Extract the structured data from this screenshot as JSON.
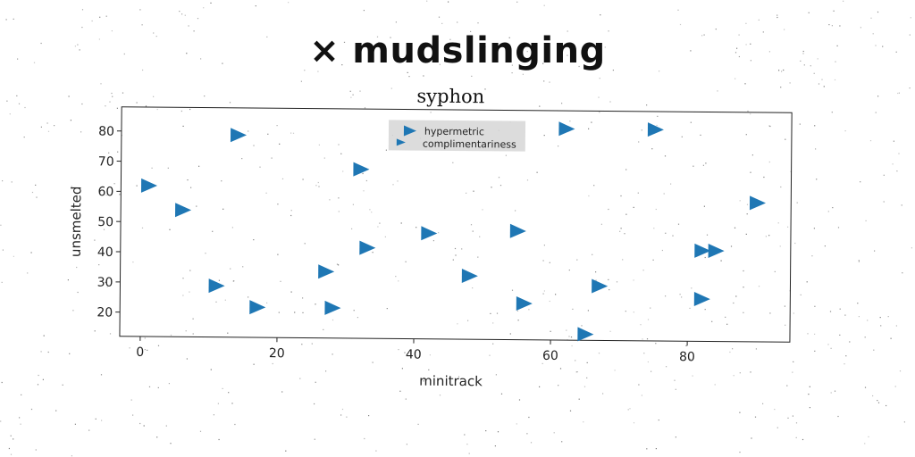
{
  "banner": {
    "prefix": "×",
    "text": "mudslinging"
  },
  "chart_data": {
    "type": "scatter",
    "title": "syphon",
    "xlabel": "minitrack",
    "ylabel": "unsmelted",
    "xlim": [
      -3,
      95
    ],
    "ylim": [
      12,
      88
    ],
    "xticks": [
      0,
      20,
      40,
      60,
      80
    ],
    "yticks": [
      20,
      30,
      40,
      50,
      60,
      70,
      80
    ],
    "grid": false,
    "legend_position": "top-center",
    "series": [
      {
        "name": "hypermetric",
        "color": "#1f77b4",
        "marker": "triangle-right",
        "points": [
          {
            "x": 1,
            "y": 62
          },
          {
            "x": 6,
            "y": 54
          },
          {
            "x": 11,
            "y": 29
          },
          {
            "x": 14,
            "y": 79
          },
          {
            "x": 17,
            "y": 22
          },
          {
            "x": 27,
            "y": 34
          },
          {
            "x": 28,
            "y": 22
          },
          {
            "x": 32,
            "y": 68
          },
          {
            "x": 33,
            "y": 42
          },
          {
            "x": 42,
            "y": 47
          },
          {
            "x": 48,
            "y": 33
          },
          {
            "x": 55,
            "y": 48
          },
          {
            "x": 56,
            "y": 24
          },
          {
            "x": 62,
            "y": 82
          },
          {
            "x": 65,
            "y": 14
          },
          {
            "x": 67,
            "y": 30
          },
          {
            "x": 75,
            "y": 82
          },
          {
            "x": 82,
            "y": 42
          },
          {
            "x": 82,
            "y": 26
          },
          {
            "x": 84,
            "y": 42
          },
          {
            "x": 90,
            "y": 58
          }
        ]
      },
      {
        "name": "complimentariness",
        "color": "#1f77b4",
        "marker": "triangle-right",
        "points": []
      }
    ]
  }
}
